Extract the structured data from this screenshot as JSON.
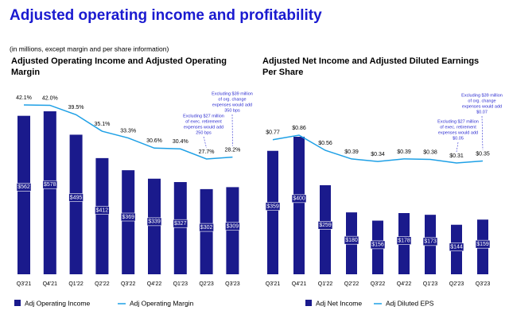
{
  "title": "Adjusted operating income and profitability",
  "note": "(in millions, except margin and per share information)",
  "chart_data": [
    {
      "type": "bar-line",
      "title": [
        "Adjusted Operating Income and Adjusted Operating",
        "Margin"
      ],
      "categories": [
        "Q3'21",
        "Q4'21",
        "Q1'22",
        "Q2'22",
        "Q3'22",
        "Q4'22",
        "Q1'23",
        "Q2'23",
        "Q3'23"
      ],
      "series": [
        {
          "name": "Adj Operating Income",
          "type": "bar",
          "color": "#1a1a8c",
          "values": [
            562,
            578,
            495,
            412,
            369,
            339,
            327,
            302,
            309
          ],
          "value_labels": [
            "$562",
            "$578",
            "$495",
            "$412",
            "$369",
            "$339",
            "$327",
            "$302",
            "$309"
          ]
        },
        {
          "name": "Adj Operating Margin",
          "type": "line",
          "color": "#1ea0e6",
          "values": [
            42.1,
            42.0,
            39.5,
            35.1,
            33.3,
            30.6,
            30.4,
            27.7,
            28.2
          ],
          "value_labels": [
            "42.1%",
            "42.0%",
            "39.5%",
            "35.1%",
            "33.3%",
            "30.6%",
            "30.4%",
            "27.7%",
            "28.2%"
          ]
        }
      ],
      "annotations": [
        [
          "Excluding $27 million",
          "of exec. retirement",
          "expenses would add",
          "250 bps"
        ],
        [
          "Excluding $39 million",
          "of org. change",
          "expenses would add",
          "350 bps"
        ]
      ]
    },
    {
      "type": "bar-line",
      "title": [
        "Adjusted Net Income and Adjusted Diluted Earnings",
        "Per Share"
      ],
      "categories": [
        "Q3'21",
        "Q4'21",
        "Q1'22",
        "Q2'22",
        "Q3'22",
        "Q4'22",
        "Q1'23",
        "Q2'23",
        "Q3'23"
      ],
      "series": [
        {
          "name": "Adj Net Income",
          "type": "bar",
          "color": "#1a1a8c",
          "values": [
            359,
            400,
            259,
            180,
            156,
            178,
            173,
            144,
            159
          ],
          "value_labels": [
            "$359",
            "$400",
            "$259",
            "$180",
            "$156",
            "$178",
            "$173",
            "$144",
            "$159"
          ]
        },
        {
          "name": "Adj Diluted EPS",
          "type": "line",
          "color": "#1ea0e6",
          "values": [
            0.77,
            0.86,
            0.56,
            0.39,
            0.34,
            0.39,
            0.38,
            0.31,
            0.35
          ],
          "value_labels": [
            "$0.77",
            "$0.86",
            "$0.56",
            "$0.39",
            "$0.34",
            "$0.39",
            "$0.38",
            "$0.31",
            "$0.35"
          ]
        }
      ],
      "annotations": [
        [
          "Excluding $27 million",
          "of exec. retirement",
          "expenses would add",
          "$0.05"
        ],
        [
          "Excluding $39 million",
          "of org. change",
          "expenses would add",
          "$0.07"
        ]
      ]
    }
  ]
}
